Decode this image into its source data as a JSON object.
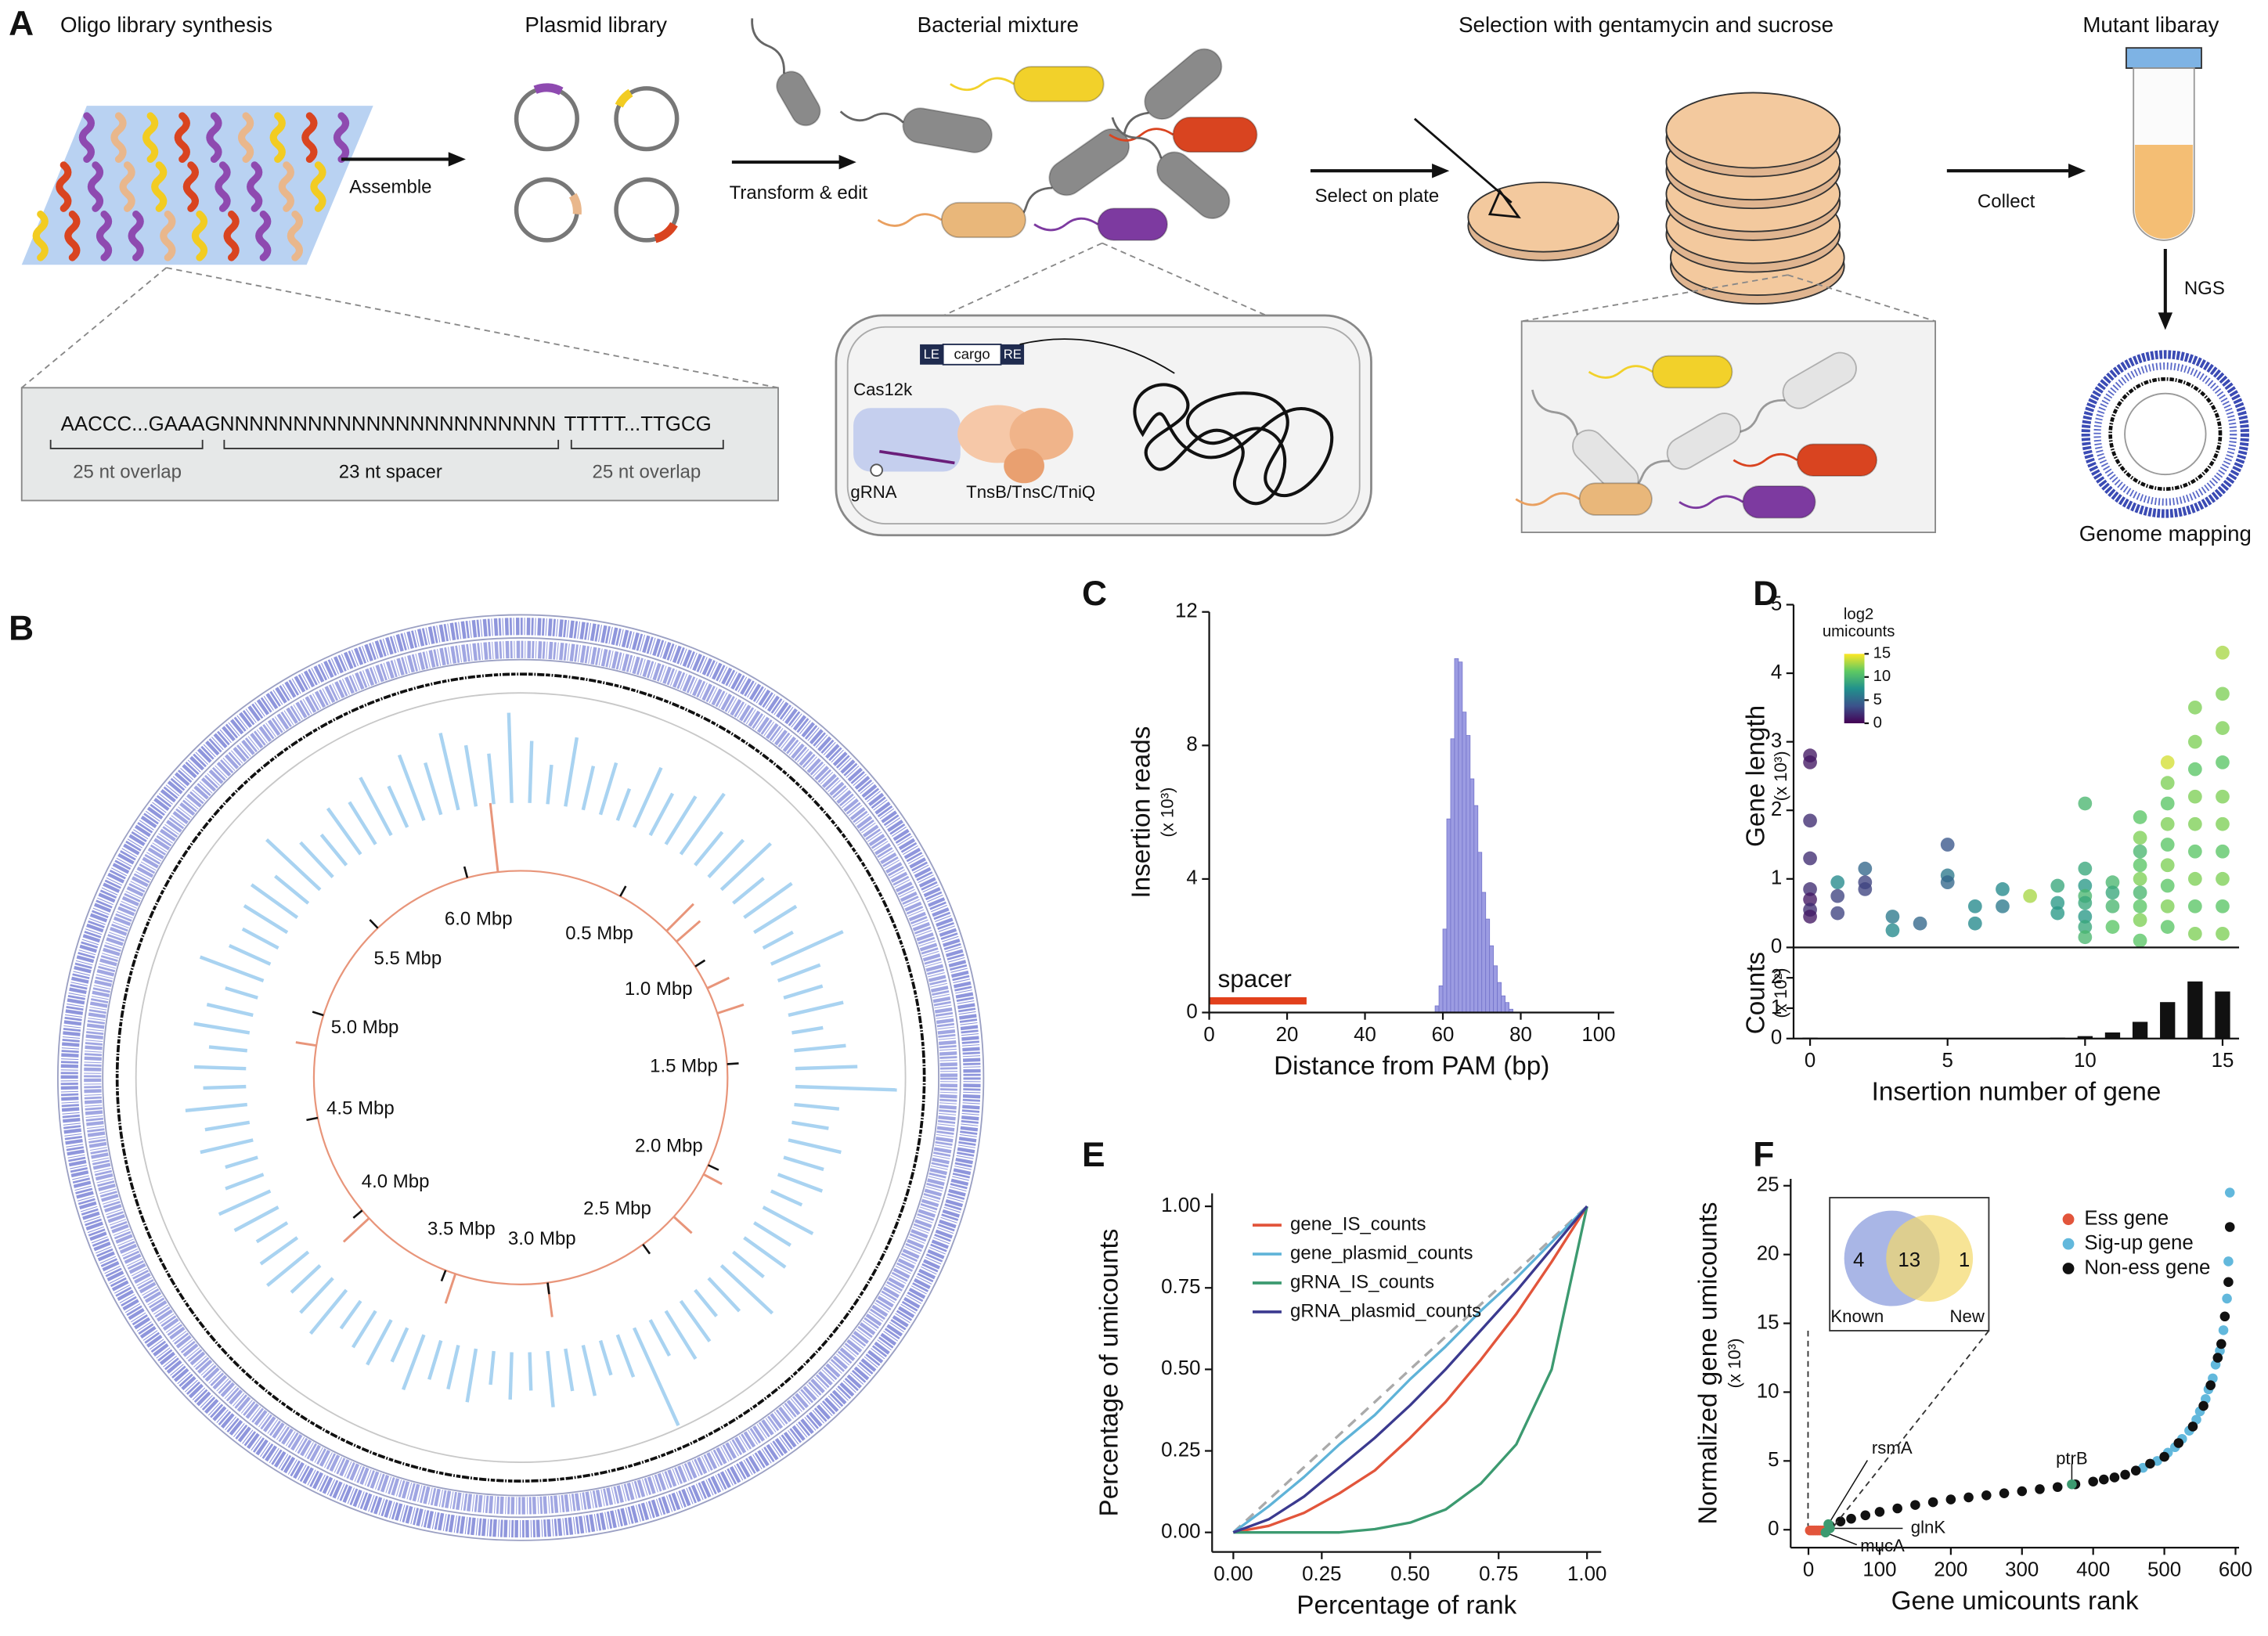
{
  "panel_labels": [
    "A",
    "B",
    "C",
    "D",
    "E",
    "F"
  ],
  "workflow": {
    "steps": [
      "Oligo library synthesis",
      "Plasmid library",
      "Bacterial mixture",
      "Selection with gentamycin and sucrose",
      "Mutant libaray"
    ],
    "arrows": [
      "Assemble",
      "Transform & edit",
      "Select on plate",
      "Collect",
      "NGS"
    ],
    "end": "Genome mapping",
    "oligo": {
      "left": "AACCC...GAAAG",
      "spacer": "NNNNNNNNNNNNNNNNNNNNNNN",
      "right": "TTTTT...TTGCG",
      "left_label": "25 nt overlap",
      "spacer_label": "23 nt spacer",
      "right_label": "25 nt overlap"
    },
    "construct": [
      "LE",
      "cargo",
      "RE"
    ],
    "proteins": [
      "Cas12k",
      "gRNA",
      "TnsB/TnsC/TniQ"
    ]
  },
  "chart_data": [
    {
      "type": "circos",
      "xlim": [
        0,
        6.26
      ],
      "xticks": [
        {
          "value": 0.5,
          "label": "0.5 Mbp"
        },
        {
          "value": 1.0,
          "label": "1.0 Mbp"
        },
        {
          "value": 1.5,
          "label": "1.5 Mbp"
        },
        {
          "value": 2.0,
          "label": "2.0 Mbp"
        },
        {
          "value": 2.5,
          "label": "2.5 Mbp"
        },
        {
          "value": 3.0,
          "label": "3.0 Mbp"
        },
        {
          "value": 3.5,
          "label": "3.5 Mbp"
        },
        {
          "value": 4.0,
          "label": "4.0 Mbp"
        },
        {
          "value": 4.5,
          "label": "4.5 Mbp"
        },
        {
          "value": 5.0,
          "label": "5.0 Mbp"
        },
        {
          "value": 5.5,
          "label": "5.5 Mbp"
        },
        {
          "value": 6.0,
          "label": "6.0 Mbp"
        }
      ],
      "coverage": {
        "color": "#a9d3f1",
        "values": [
          0.55,
          0.35,
          0.62,
          0.4,
          0.48,
          0.3,
          0.58,
          0.42,
          0.5,
          0.66,
          0.38,
          0.45,
          0.6,
          0.35,
          0.52,
          0.44,
          0.3,
          0.7,
          0.4,
          0.36,
          0.5,
          0.28,
          0.46,
          0.55,
          0.9,
          0.4,
          0.33,
          0.48,
          0.37,
          0.42,
          0.3,
          0.5,
          0.38,
          0.45,
          0.35,
          0.62,
          0.4,
          0.3,
          0.44,
          0.5,
          0.36,
          0.95,
          0.4,
          0.32,
          0.46,
          0.38,
          0.5,
          0.34,
          0.42,
          0.3,
          0.48,
          0.4,
          0.36,
          0.52,
          0.33,
          0.45,
          0.38,
          0.3,
          0.5,
          0.42,
          0.35,
          0.47,
          0.4,
          0.32,
          0.44,
          0.5,
          0.36,
          0.3,
          0.48,
          0.4,
          0.55,
          0.38,
          0.46,
          0.34,
          0.5,
          0.42,
          0.3,
          0.6,
          0.4,
          0.36,
          0.45,
          0.5,
          0.38,
          0.65,
          0.42,
          0.35,
          0.5,
          0.44,
          0.58,
          0.4,
          0.62,
          0.48,
          0.7,
          0.55,
          0.45,
          0.8
        ]
      },
      "peaks": {
        "color": "#e8957a",
        "x": [
          6.15,
          0.78,
          0.85,
          1.12,
          1.25,
          2.05,
          2.3,
          3.0,
          3.45,
          3.95,
          4.85
        ],
        "values": [
          1.0,
          0.55,
          0.45,
          0.35,
          0.4,
          0.3,
          0.35,
          0.5,
          0.45,
          0.5,
          0.3
        ]
      }
    },
    {
      "type": "histogram",
      "ylabel": "Insertion reads",
      "ylabel_unit": "(x 10³)",
      "xlabel": "Distance from PAM (bp)",
      "bins": [
        58,
        59,
        60,
        61,
        62,
        63,
        64,
        65,
        66,
        67,
        68,
        69,
        70,
        71,
        72,
        73,
        74,
        75,
        76,
        77,
        78
      ],
      "values": [
        0.2,
        0.8,
        2.5,
        5.8,
        8.2,
        10.6,
        10.5,
        9.0,
        8.3,
        7.0,
        6.2,
        4.8,
        3.6,
        2.8,
        2.0,
        1.4,
        0.9,
        0.5,
        0.3,
        0.1
      ],
      "color": "#9c9ce2",
      "xlim": [
        0,
        104
      ],
      "ylim": [
        0,
        12
      ],
      "xticks": [
        0,
        20,
        40,
        60,
        80,
        100
      ],
      "yticks": [
        0,
        4,
        8,
        12
      ],
      "annotation": {
        "text": "spacer",
        "x": [
          0,
          25
        ],
        "y": 0.35,
        "color": "#e2401c"
      }
    },
    {
      "type": "scatter",
      "ylabel": "Gene length",
      "ylabel_unit": "(x 10³)",
      "x": [
        0,
        0,
        0,
        0,
        0,
        0,
        0,
        0,
        1,
        1,
        1,
        2,
        2,
        2,
        3,
        3,
        4,
        5,
        5,
        5,
        6,
        6,
        7,
        7,
        8,
        9,
        9,
        9,
        10,
        10,
        10,
        10,
        10,
        10,
        10,
        10,
        11,
        11,
        11,
        11,
        12,
        12,
        12,
        12,
        12,
        12,
        12,
        12,
        12,
        13,
        13,
        13,
        13,
        13,
        13,
        13,
        13,
        13,
        14,
        14,
        14,
        14,
        14,
        14,
        14,
        14,
        14,
        15,
        15,
        15,
        15,
        15,
        15,
        15,
        15,
        15,
        15
      ],
      "values": [
        2.8,
        2.7,
        1.85,
        1.3,
        0.85,
        0.7,
        0.55,
        0.45,
        0.95,
        0.75,
        0.5,
        1.15,
        0.95,
        0.85,
        0.45,
        0.25,
        0.35,
        1.5,
        1.05,
        0.95,
        0.6,
        0.35,
        0.85,
        0.6,
        0.75,
        0.9,
        0.65,
        0.5,
        2.1,
        1.15,
        0.9,
        0.75,
        0.65,
        0.45,
        0.3,
        0.15,
        0.95,
        0.8,
        0.6,
        0.3,
        1.9,
        1.6,
        1.4,
        1.2,
        1.0,
        0.8,
        0.6,
        0.4,
        0.1,
        2.7,
        2.4,
        2.1,
        1.8,
        1.5,
        1.2,
        0.9,
        0.6,
        0.3,
        3.5,
        3.0,
        2.6,
        2.2,
        1.8,
        1.4,
        1.0,
        0.6,
        0.2,
        4.3,
        3.7,
        3.2,
        2.7,
        2.2,
        1.8,
        1.4,
        1.0,
        0.6,
        0.2
      ],
      "color_values": [
        1,
        1,
        2,
        2,
        2,
        1,
        2,
        1,
        7,
        3,
        3,
        5,
        3,
        3,
        6,
        7,
        5,
        4,
        6,
        5,
        7,
        7,
        7,
        6,
        13,
        9,
        8,
        8,
        10,
        9,
        8,
        10,
        9,
        8,
        9,
        10,
        10,
        9,
        10,
        11,
        11,
        12,
        10,
        11,
        12,
        10,
        11,
        12,
        11,
        14,
        12,
        11,
        12,
        11,
        12,
        11,
        12,
        11,
        12,
        12,
        11,
        12,
        12,
        11,
        12,
        11,
        12,
        13,
        12,
        12,
        11,
        12,
        12,
        11,
        12,
        11,
        12
      ],
      "colormap": [
        "#440154",
        "#3b528b",
        "#21918c",
        "#5ec962",
        "#fde725"
      ],
      "colorbar": {
        "title": [
          "log2",
          "umicounts"
        ],
        "lim": [
          0,
          15
        ],
        "ticks": [
          0,
          5,
          10,
          15
        ]
      },
      "xlim": [
        -0.6,
        15.6
      ],
      "ylim": [
        0,
        5
      ],
      "yticks": [
        0,
        1,
        2,
        3,
        4,
        5
      ]
    },
    {
      "type": "bar",
      "ylabel": "Counts",
      "ylabel_unit": "(x 10²)",
      "xlabel": "Insertion number of gene",
      "x": [
        0,
        1,
        2,
        3,
        4,
        5,
        6,
        7,
        8,
        9,
        10,
        11,
        12,
        13,
        14,
        15
      ],
      "values": [
        0.03,
        0,
        0,
        0,
        0,
        0,
        0,
        0,
        0,
        0.03,
        0.08,
        0.2,
        0.55,
        1.2,
        1.88,
        1.55
      ],
      "color": "#111111",
      "xlim": [
        -0.6,
        15.6
      ],
      "ylim": [
        0,
        3
      ],
      "yticks": [
        0,
        1,
        2
      ],
      "xticks": [
        0,
        5,
        10,
        15
      ]
    },
    {
      "type": "line",
      "xlabel": "Percentage of rank",
      "ylabel": "Percentage of umicounts",
      "x": [
        0,
        0.1,
        0.2,
        0.3,
        0.4,
        0.5,
        0.6,
        0.7,
        0.8,
        0.9,
        1
      ],
      "series": [
        {
          "name": "gene_IS_counts",
          "color": "#e2553b",
          "values": [
            0,
            0.02,
            0.06,
            0.12,
            0.19,
            0.29,
            0.4,
            0.53,
            0.67,
            0.83,
            1
          ]
        },
        {
          "name": "gene_plasmid_counts",
          "color": "#5fb3d8",
          "values": [
            0,
            0.08,
            0.17,
            0.27,
            0.36,
            0.47,
            0.57,
            0.68,
            0.78,
            0.89,
            1
          ]
        },
        {
          "name": "gRNA_IS_counts",
          "color": "#3c9a70",
          "values": [
            0,
            0,
            0,
            0,
            0.01,
            0.03,
            0.07,
            0.15,
            0.27,
            0.5,
            1
          ]
        },
        {
          "name": "gRNA_plasmid_counts",
          "color": "#3b3a8f",
          "values": [
            0,
            0.04,
            0.11,
            0.2,
            0.29,
            0.39,
            0.5,
            0.62,
            0.74,
            0.87,
            1
          ]
        }
      ],
      "reference": {
        "x": [
          0,
          1
        ],
        "values": [
          0,
          1
        ],
        "color": "#aaaaaa"
      },
      "legend": "top-left",
      "xlim": [
        -0.06,
        1.04
      ],
      "ylim": [
        -0.06,
        1.04
      ],
      "xticks": [
        {
          "value": 0,
          "label": "0.00"
        },
        {
          "value": 0.25,
          "label": "0.25"
        },
        {
          "value": 0.5,
          "label": "0.50"
        },
        {
          "value": 0.75,
          "label": "0.75"
        },
        {
          "value": 1,
          "label": "1.00"
        }
      ],
      "yticks": [
        {
          "value": 0,
          "label": "0.00"
        },
        {
          "value": 0.25,
          "label": "0.25"
        },
        {
          "value": 0.5,
          "label": "0.50"
        },
        {
          "value": 0.75,
          "label": "0.75"
        },
        {
          "value": 1,
          "label": "1.00"
        }
      ]
    },
    {
      "type": "scatter",
      "ylabel": "Normalized gene umicounts",
      "ylabel_unit": "(x 10³)",
      "xlabel": "Gene umicounts rank",
      "series": [
        {
          "name": "Ess gene",
          "color": "#e2553b",
          "x": [
            2,
            5,
            8,
            11,
            14,
            17,
            20,
            23
          ],
          "values": [
            -0.05,
            -0.05,
            -0.05,
            -0.05,
            -0.05,
            -0.05,
            -0.05,
            -0.05
          ]
        },
        {
          "name": "Sig-up gene",
          "color": "#62b8dc",
          "x": [
            470,
            490,
            505,
            515,
            525,
            535,
            545,
            550,
            558,
            562,
            568,
            572,
            578,
            583,
            588,
            590,
            592
          ],
          "values": [
            4.5,
            5,
            5.6,
            6,
            6.6,
            7.2,
            8,
            8.6,
            9.5,
            10.2,
            11,
            12,
            13,
            14.5,
            16.8,
            19.5,
            24.5
          ]
        },
        {
          "name": "Non-ess gene",
          "color": "#111111",
          "x": [
            30,
            45,
            60,
            80,
            100,
            125,
            150,
            175,
            200,
            225,
            250,
            275,
            300,
            325,
            350,
            375,
            400,
            415,
            430,
            445,
            460,
            480,
            500,
            520,
            540,
            555,
            565,
            575,
            580,
            585,
            590,
            592
          ],
          "values": [
            0.3,
            0.6,
            0.8,
            1.05,
            1.3,
            1.55,
            1.8,
            2.0,
            2.2,
            2.35,
            2.5,
            2.65,
            2.8,
            2.95,
            3.1,
            3.3,
            3.5,
            3.65,
            3.8,
            4.0,
            4.3,
            4.8,
            5.3,
            6.3,
            7.5,
            9,
            10.5,
            12.5,
            13.5,
            15.5,
            18,
            22
          ]
        }
      ],
      "labeled_points": [
        {
          "text": "rsmA",
          "x": 28,
          "y": 0.4
        },
        {
          "text": "glnK",
          "x": 30,
          "y": 0.1
        },
        {
          "text": "mucA",
          "x": 24,
          "y": -0.2
        },
        {
          "text": "ptrB",
          "x": 370,
          "y": 3.3
        }
      ],
      "point_color": "#3c9a70",
      "venn": {
        "left": 4,
        "center": 13,
        "right": 1,
        "left_label": "Known",
        "right_label": "New"
      },
      "legend": "top-right",
      "xlim": [
        -25,
        605
      ],
      "ylim": [
        -1.3,
        25.5
      ],
      "xticks": [
        0,
        100,
        200,
        300,
        400,
        500,
        600
      ],
      "yticks": [
        0,
        5,
        10,
        15,
        20,
        25
      ]
    }
  ]
}
